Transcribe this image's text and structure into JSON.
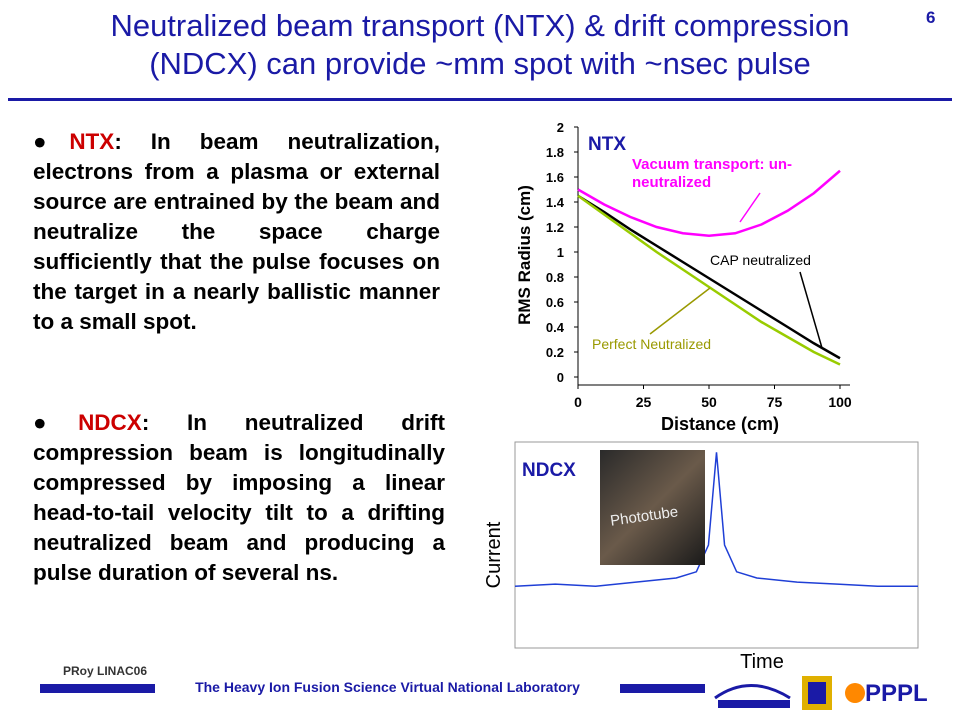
{
  "header": {
    "title_line1": "Neutralized  beam transport (NTX) & drift compression",
    "title_line2": "(NDCX) can provide ~mm spot with ~nsec pulse",
    "page": "6"
  },
  "bullets": [
    {
      "label": "NTX",
      "text": ": In beam neutralization, electrons from a plasma or external source are entrained by the beam and neutralize the space charge sufficiently that the pulse focuses on the target in a nearly ballistic manner to a small spot."
    },
    {
      "label": "NDCX",
      "text": ": In neutralized drift compression beam is longitudinally compressed by imposing a linear head-to-tail velocity tilt to a drifting neutralized beam and producing a pulse duration  of several ns."
    }
  ],
  "chart_data": [
    {
      "type": "line",
      "title": "NTX",
      "x_label": "Distance (cm)",
      "y_label": "RMS Radius (cm)",
      "x": [
        0,
        10,
        20,
        30,
        40,
        50,
        60,
        70,
        80,
        90,
        100
      ],
      "series": [
        {
          "name": "Vacuum transport: un-neutralized",
          "color": "#ff00ff",
          "values": [
            1.5,
            1.38,
            1.28,
            1.2,
            1.15,
            1.13,
            1.15,
            1.22,
            1.33,
            1.47,
            1.65
          ]
        },
        {
          "name": "CAP neutralized",
          "color": "#000000",
          "values": [
            1.45,
            1.32,
            1.18,
            1.05,
            0.92,
            0.79,
            0.66,
            0.53,
            0.4,
            0.27,
            0.15
          ]
        },
        {
          "name": "Perfect Neutralized",
          "color": "#99cc00",
          "values": [
            1.45,
            1.3,
            1.15,
            1.0,
            0.86,
            0.72,
            0.58,
            0.44,
            0.32,
            0.2,
            0.1
          ]
        }
      ],
      "xlim": [
        0,
        100
      ],
      "xticks": [
        0,
        25,
        50,
        75,
        100
      ],
      "ylim": [
        0,
        2
      ],
      "yticks": [
        0,
        0.2,
        0.4,
        0.6,
        0.8,
        1,
        1.2,
        1.4,
        1.6,
        1.8,
        2
      ]
    },
    {
      "type": "line",
      "title": "NDCX",
      "x_label": "Time",
      "y_label": "Current",
      "photo_label": "Phototube",
      "x": [
        0,
        10,
        20,
        30,
        40,
        45,
        48,
        50,
        52,
        55,
        60,
        70,
        80,
        90,
        100
      ],
      "series": [
        {
          "name": "Current",
          "color": "#1f3fd6",
          "values": [
            0.3,
            0.31,
            0.3,
            0.32,
            0.34,
            0.37,
            0.5,
            0.95,
            0.5,
            0.37,
            0.34,
            0.32,
            0.31,
            0.3,
            0.3
          ]
        }
      ],
      "xlim": [
        0,
        100
      ],
      "ylim": [
        0,
        1
      ]
    }
  ],
  "footer": {
    "author": "PRoy LINAC06",
    "lab": "The Heavy Ion Fusion Science Virtual National Laboratory",
    "logo": "PPPL"
  }
}
